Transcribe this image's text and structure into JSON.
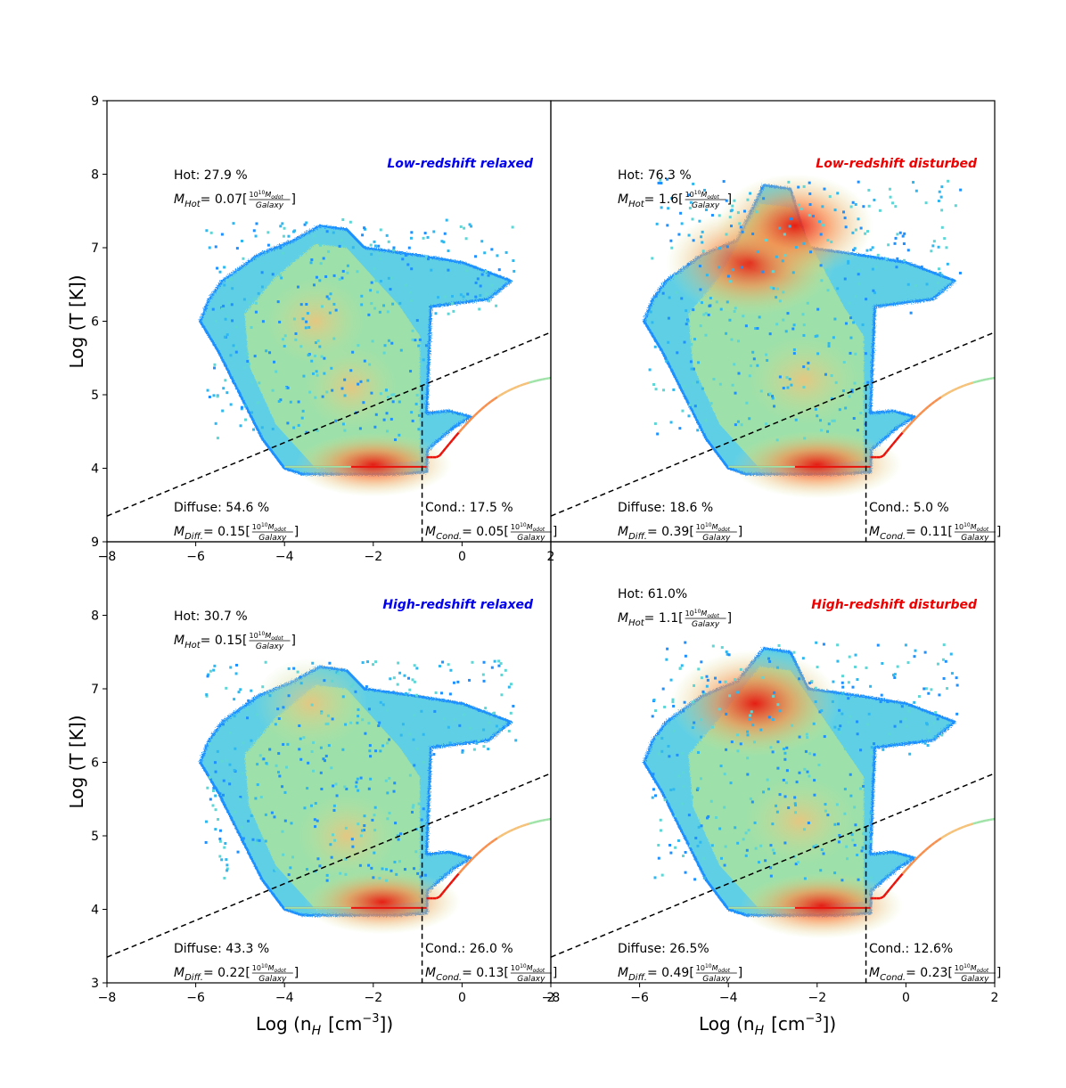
{
  "figure": {
    "ylabel": "Log (T [K])",
    "xlabel": "Log (n",
    "xlabel_sub": "H",
    "xlabel_unit": "[cm",
    "xlabel_exp": "−3",
    "xlabel_close": "])"
  },
  "colors": {
    "relaxed_title": "#0000ee",
    "disturbed_title": "#ee0000",
    "divider": "#000000",
    "colormap": [
      "#1e90ff",
      "#2fb8f0",
      "#5ed6d6",
      "#9fe3a8",
      "#d7e38a",
      "#f5c178",
      "#f7904f",
      "#f04a2a",
      "#e8140c"
    ]
  },
  "chart_data": [
    {
      "type": "heatmap",
      "panel": "top-left",
      "title": "Low-redshift relaxed",
      "title_color": "#0000ee",
      "xlim": [
        -8,
        2
      ],
      "ylim": [
        3,
        9
      ],
      "xticks": [
        "−8",
        "−6",
        "−4",
        "−2",
        "0",
        "2"
      ],
      "yticks": [
        "9",
        "8",
        "7",
        "6",
        "5",
        "4"
      ],
      "hot": {
        "label": "Hot: 27.9 %",
        "mass_sym": "M",
        "mass_sub": "Hot",
        "mass_val": "= 0.07[",
        "frac_num": "10",
        "frac_num_exp": "10",
        "frac_num_sym": "M",
        "frac_num_sub": "odot",
        "frac_den": "Galaxy",
        "close": "]"
      },
      "diffuse": {
        "label": "Diffuse: 54.6 %",
        "mass_sym": "M",
        "mass_sub": "Diff.",
        "mass_val": "= 0.15[",
        "frac_num": "10",
        "frac_num_exp": "10",
        "frac_num_sym": "M",
        "frac_num_sub": "odot",
        "frac_den": "Galaxy",
        "close": "]"
      },
      "cond": {
        "label": "Cond.: 17.5 %",
        "mass_sym": "M",
        "mass_sub": "Cond.",
        "mass_val": "= 0.05[",
        "frac_num": "10",
        "frac_num_exp": "10",
        "frac_num_sym": "M",
        "frac_num_sub": "odot",
        "frac_den": "Galaxy",
        "close": "]"
      },
      "dashed_line": [
        [
          -8,
          3.35
        ],
        [
          2,
          5.85
        ]
      ],
      "vertical_cut": -0.9,
      "region_peaks": [
        {
          "x": -2,
          "y": 4.05,
          "v": 0.9
        },
        {
          "x": -3.3,
          "y": 6.0,
          "v": 0.45
        },
        {
          "x": -2.5,
          "y": 5.1,
          "v": 0.4
        }
      ],
      "extent_top": 7.3
    },
    {
      "type": "heatmap",
      "panel": "top-right",
      "title": "Low-redshift disturbed",
      "title_color": "#ee0000",
      "xlim": [
        -8,
        2
      ],
      "ylim": [
        3,
        9
      ],
      "xticks": [],
      "yticks": [],
      "hot": {
        "label": "Hot: 76.3 %",
        "mass_sym": "M",
        "mass_sub": "Hot",
        "mass_val": "= 1.6[",
        "frac_num": "10",
        "frac_num_exp": "10",
        "frac_num_sym": "M",
        "frac_num_sub": "odot",
        "frac_den": "Galaxy",
        "close": "]"
      },
      "diffuse": {
        "label": "Diffuse: 18.6 %",
        "mass_sym": "M",
        "mass_sub": "Diff.",
        "mass_val": "= 0.39[",
        "frac_num": "10",
        "frac_num_exp": "10",
        "frac_num_sym": "M",
        "frac_num_sub": "odot",
        "frac_den": "Galaxy",
        "close": "]"
      },
      "cond": {
        "label": "Cond.: 5.0 %",
        "mass_sym": "M",
        "mass_sub": "Cond.",
        "mass_val": "= 0.11[",
        "frac_num": "10",
        "frac_num_exp": "10",
        "frac_num_sym": "M",
        "frac_num_sub": "odot",
        "frac_den": "Galaxy",
        "close": "]"
      },
      "dashed_line": [
        [
          -8,
          3.35
        ],
        [
          2,
          5.85
        ]
      ],
      "vertical_cut": -0.9,
      "region_peaks": [
        {
          "x": -3.5,
          "y": 6.8,
          "v": 1.0
        },
        {
          "x": -2.5,
          "y": 7.3,
          "v": 0.9
        },
        {
          "x": -2,
          "y": 4.05,
          "v": 1.0
        },
        {
          "x": -2.3,
          "y": 5.2,
          "v": 0.55
        }
      ],
      "extent_top": 7.85
    },
    {
      "type": "heatmap",
      "panel": "bottom-left",
      "title": "High-redshift relaxed",
      "title_color": "#0000ee",
      "xlim": [
        -8,
        2
      ],
      "ylim": [
        3,
        9
      ],
      "xticks": [
        "−8",
        "−6",
        "−4",
        "−2",
        "0",
        "2"
      ],
      "yticks": [
        "9",
        "8",
        "7",
        "6",
        "5",
        "4",
        "3"
      ],
      "hot": {
        "label": "Hot: 30.7 %",
        "mass_sym": "M",
        "mass_sub": "Hot",
        "mass_val": "= 0.15[",
        "frac_num": "10",
        "frac_num_exp": "10",
        "frac_num_sym": "M",
        "frac_num_sub": "odot",
        "frac_den": "Galaxy",
        "close": "]"
      },
      "diffuse": {
        "label": "Diffuse: 43.3 %",
        "mass_sym": "M",
        "mass_sub": "Diff.",
        "mass_val": "= 0.22[",
        "frac_num": "10",
        "frac_num_exp": "10",
        "frac_num_sym": "M",
        "frac_num_sub": "odot",
        "frac_den": "Galaxy",
        "close": "]"
      },
      "cond": {
        "label": "Cond.: 26.0 %",
        "mass_sym": "M",
        "mass_sub": "Cond.",
        "mass_val": "= 0.13[",
        "frac_num": "10",
        "frac_num_exp": "10",
        "frac_num_sym": "M",
        "frac_num_sub": "odot",
        "frac_den": "Galaxy",
        "close": "]"
      },
      "dashed_line": [
        [
          -8,
          3.35
        ],
        [
          2,
          5.85
        ]
      ],
      "vertical_cut": -0.9,
      "region_peaks": [
        {
          "x": -1.8,
          "y": 4.1,
          "v": 0.9
        },
        {
          "x": -3.4,
          "y": 6.8,
          "v": 0.55
        },
        {
          "x": -2.6,
          "y": 5.0,
          "v": 0.45
        }
      ],
      "extent_top": 7.3
    },
    {
      "type": "heatmap",
      "panel": "bottom-right",
      "title": "High-redshift disturbed",
      "title_color": "#ee0000",
      "xlim": [
        -8,
        2
      ],
      "ylim": [
        3,
        9
      ],
      "xticks": [
        "−8",
        "−6",
        "−4",
        "−2",
        "0",
        "2"
      ],
      "yticks": [],
      "hot": {
        "label": "Hot: 61.0%",
        "mass_sym": "M",
        "mass_sub": "Hot",
        "mass_val": "= 1.1[",
        "frac_num": "10",
        "frac_num_exp": "10",
        "frac_num_sym": "M",
        "frac_num_sub": "odot",
        "frac_den": "Galaxy",
        "close": "]"
      },
      "diffuse": {
        "label": "Diffuse: 26.5%",
        "mass_sym": "M",
        "mass_sub": "Diff.",
        "mass_val": "= 0.49[",
        "frac_num": "10",
        "frac_num_exp": "10",
        "frac_num_sym": "M",
        "frac_num_sub": "odot",
        "frac_den": "Galaxy",
        "close": "]"
      },
      "cond": {
        "label": "Cond.: 12.6%",
        "mass_sym": "M",
        "mass_sub": "Cond.",
        "mass_val": "= 0.23[",
        "frac_num": "10",
        "frac_num_exp": "10",
        "frac_num_sym": "M",
        "frac_num_sub": "odot",
        "frac_den": "Galaxy",
        "close": "]"
      },
      "dashed_line": [
        [
          -8,
          3.35
        ],
        [
          2,
          5.85
        ]
      ],
      "vertical_cut": -0.9,
      "region_peaks": [
        {
          "x": -3.4,
          "y": 6.8,
          "v": 1.0
        },
        {
          "x": -1.9,
          "y": 4.05,
          "v": 0.95
        },
        {
          "x": -2.4,
          "y": 5.2,
          "v": 0.55
        }
      ],
      "extent_top": 7.55
    }
  ]
}
